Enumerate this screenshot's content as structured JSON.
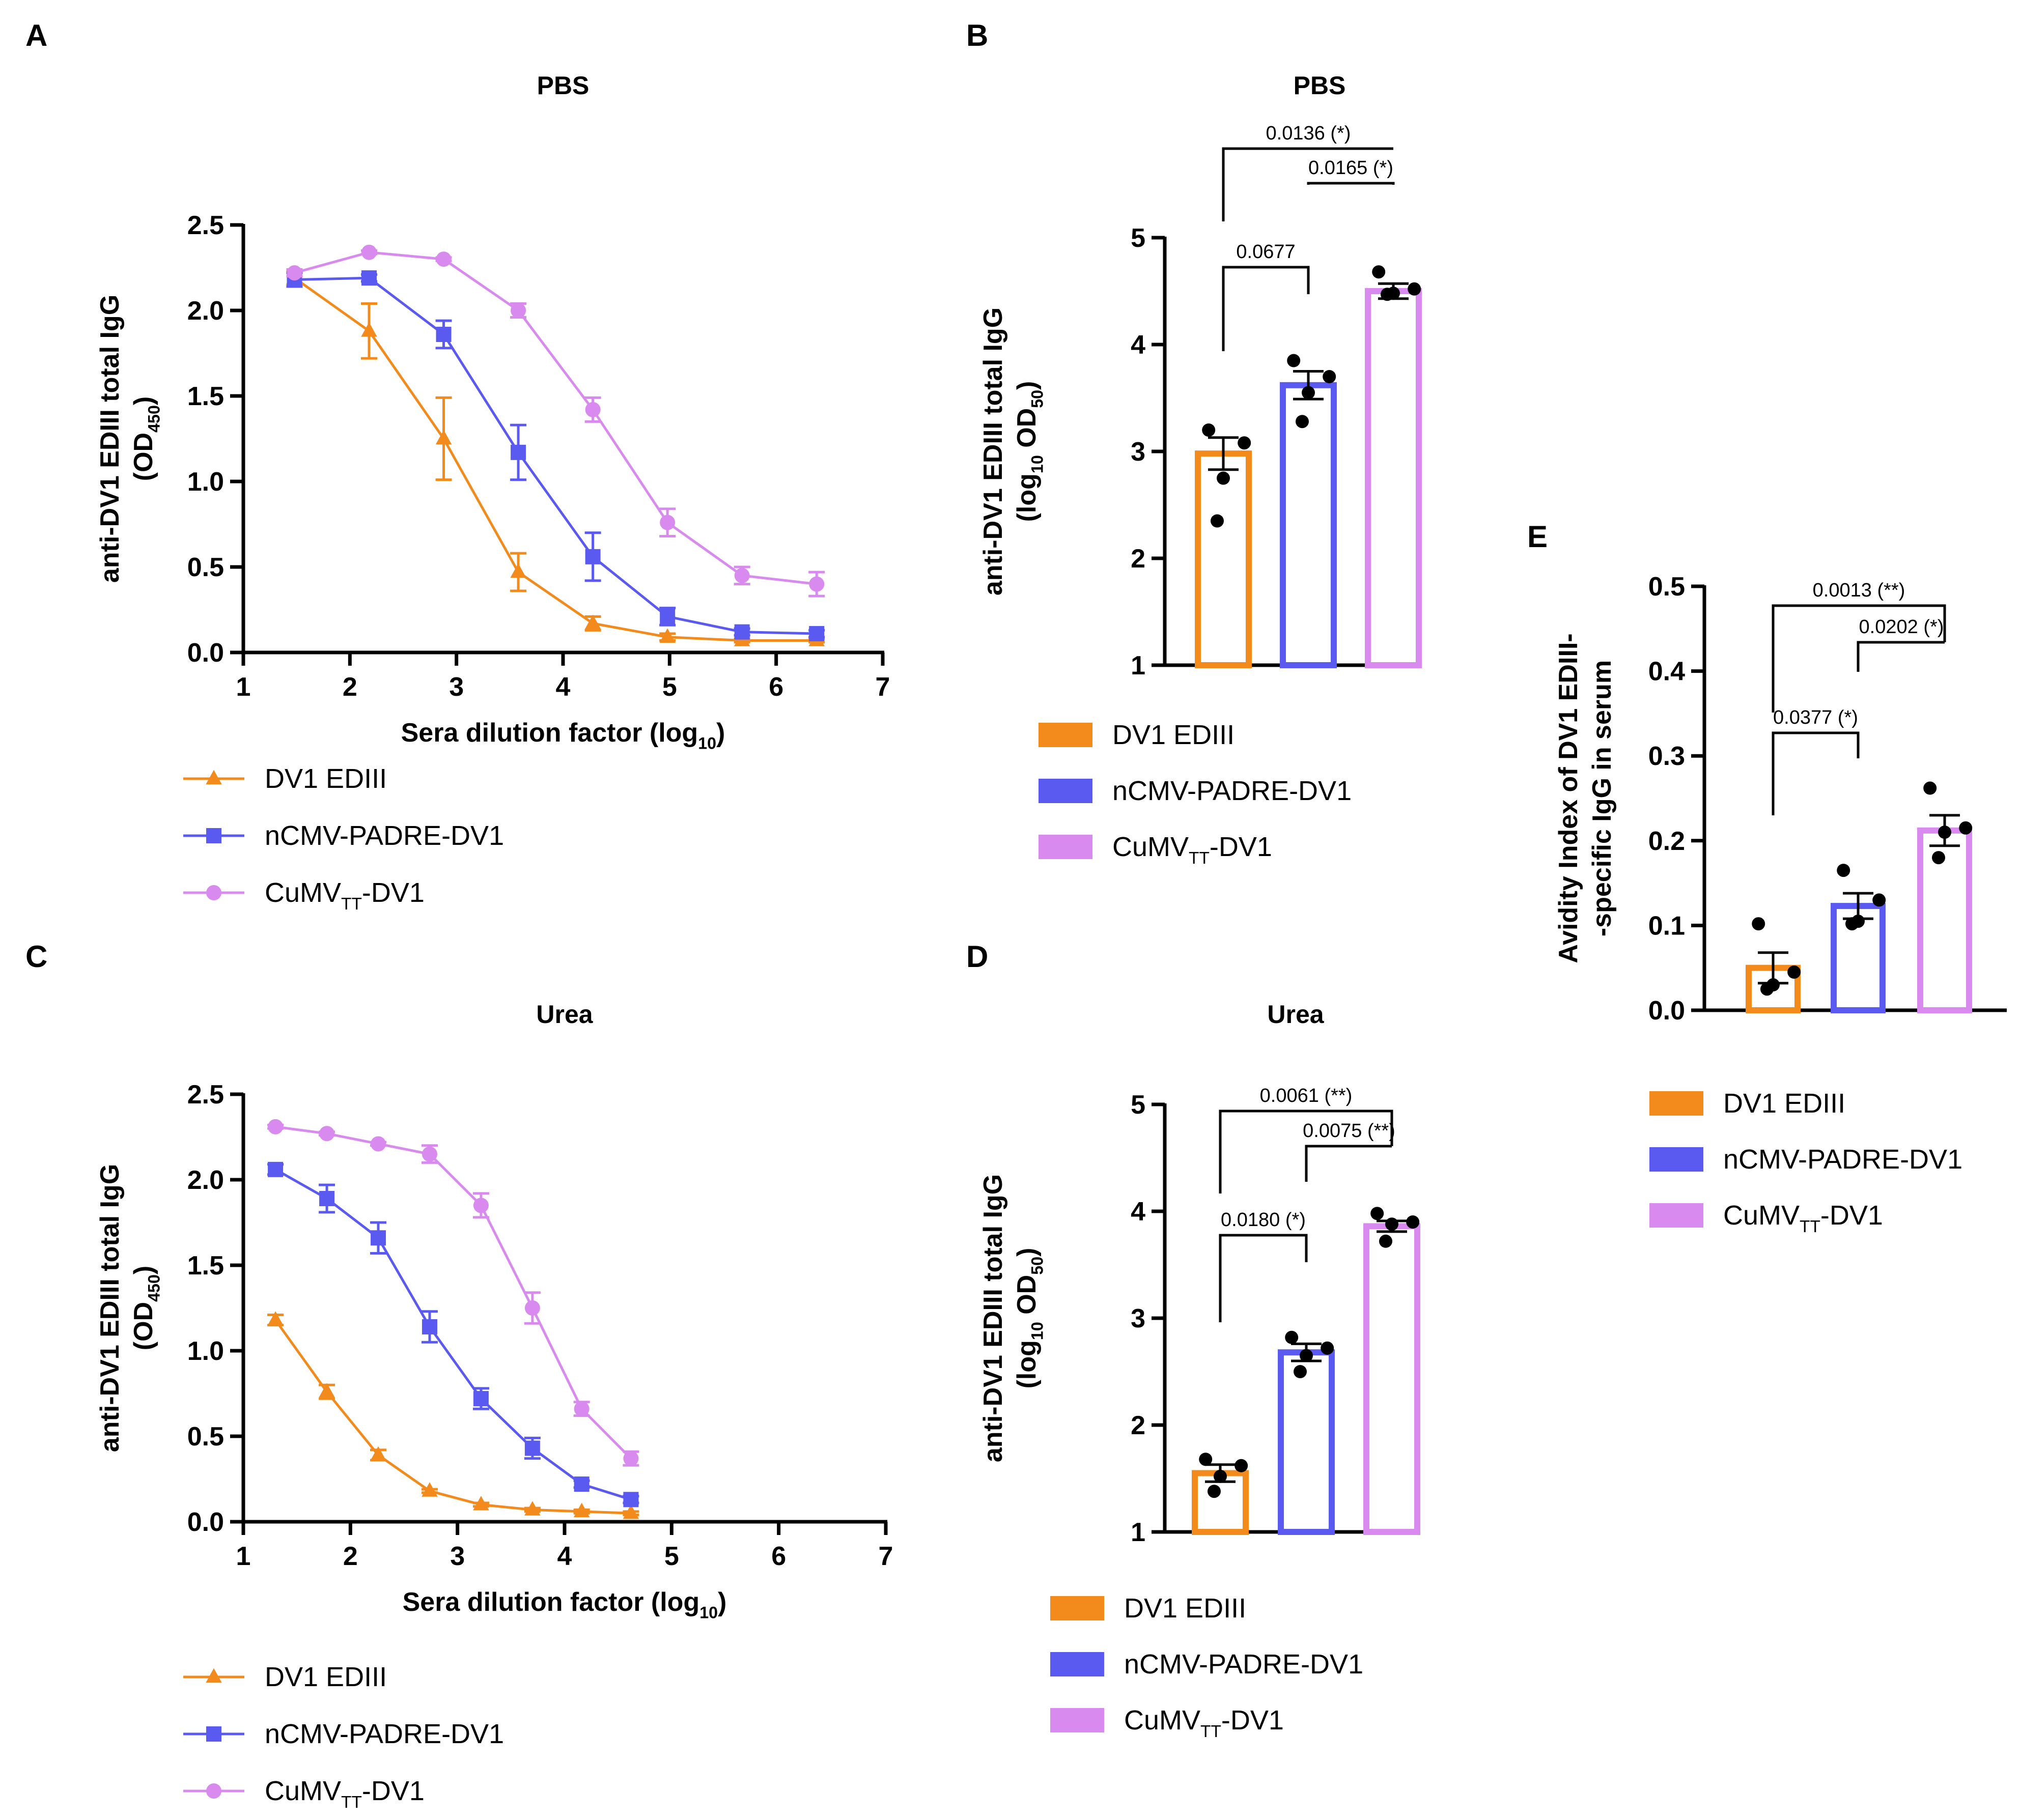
{
  "colors": {
    "orange": "#F28A1C",
    "blue": "#5A5AF0",
    "pink": "#D88AEE",
    "axis": "#000000",
    "dots": "#000000"
  },
  "series_names": [
    "DV1 EDIII",
    "nCMV-PADRE-DV1",
    "CuMV_TT-DV1"
  ],
  "chart_data": [
    {
      "panel": "A",
      "type": "line",
      "title": "PBS",
      "xlabel": "Sera dilution factor (log10)",
      "xlabel_main": "Sera dilution factor (log",
      "xlabel_sub": "10",
      "xlabel_end": ")",
      "ylabel_line1": "anti-DV1 EDIII total IgG",
      "ylabel_line2_main": "(OD",
      "ylabel_line2_sub": "450",
      "ylabel_line2_end": ")",
      "xlim": [
        1,
        7
      ],
      "ylim": [
        0,
        2.5
      ],
      "xticks": [
        "1",
        "2",
        "3",
        "4",
        "5",
        "6",
        "7"
      ],
      "yticks": [
        "0.0",
        "0.5",
        "1.0",
        "1.5",
        "2.0",
        "2.5"
      ],
      "series": [
        {
          "name": "DV1 EDIII",
          "marker": "triangle",
          "x": [
            1.48,
            2.18,
            2.88,
            3.58,
            4.28,
            4.98,
            5.68,
            6.38
          ],
          "y": [
            2.19,
            1.88,
            1.25,
            0.47,
            0.17,
            0.09,
            0.07,
            0.07
          ],
          "err": [
            0.04,
            0.16,
            0.24,
            0.11,
            0.04,
            0.02,
            0.01,
            0.01
          ]
        },
        {
          "name": "nCMV-PADRE-DV1",
          "marker": "square",
          "x": [
            1.48,
            2.18,
            2.88,
            3.58,
            4.28,
            4.98,
            5.68,
            6.38
          ],
          "y": [
            2.18,
            2.19,
            1.86,
            1.17,
            0.56,
            0.21,
            0.12,
            0.11
          ],
          "err": [
            0.04,
            0.02,
            0.08,
            0.16,
            0.14,
            0.05,
            0.02,
            0.02
          ]
        },
        {
          "name": "CuMV_TT-DV1",
          "marker": "circle",
          "x": [
            1.48,
            2.18,
            2.88,
            3.58,
            4.28,
            4.98,
            5.68,
            6.38
          ],
          "y": [
            2.22,
            2.34,
            2.3,
            2.0,
            1.42,
            0.76,
            0.45,
            0.4
          ],
          "err": [
            0.02,
            0.01,
            0.01,
            0.04,
            0.07,
            0.08,
            0.05,
            0.07
          ]
        }
      ],
      "legend": [
        "DV1 EDIII",
        "nCMV-PADRE-DV1",
        "CuMV_TT-DV1"
      ]
    },
    {
      "panel": "B",
      "type": "bar",
      "title": "PBS",
      "ylabel_line1": "anti-DV1 EDIII total IgG",
      "ylabel_line2_main": "(log",
      "ylabel_line2_sub": "10",
      "ylabel_line2_mid": " OD",
      "ylabel_line2_sub2": "50",
      "ylabel_line2_end": ")",
      "ylim": [
        1,
        5
      ],
      "yticks": [
        "1",
        "2",
        "3",
        "4",
        "5"
      ],
      "categories": [
        "DV1 EDIII",
        "nCMV-PADRE-DV1",
        "CuMV_TT-DV1"
      ],
      "values": [
        2.98,
        3.62,
        4.5
      ],
      "sem": [
        0.15,
        0.13,
        0.07
      ],
      "points": [
        [
          3.2,
          3.08,
          2.75,
          2.35
        ],
        [
          3.85,
          3.7,
          3.55,
          3.28
        ],
        [
          4.68,
          4.52,
          4.48,
          4.47
        ]
      ],
      "comparisons": [
        {
          "from": 0,
          "to": 1,
          "label": "0.0677",
          "level": 0
        },
        {
          "from": 1,
          "to": 2,
          "label": "0.0165 (*)",
          "level": 1
        },
        {
          "from": 0,
          "to": 2,
          "label": "0.0136 (*)",
          "level": 2
        }
      ],
      "legend": [
        "DV1 EDIII",
        "nCMV-PADRE-DV1",
        "CuMV_TT-DV1"
      ]
    },
    {
      "panel": "C",
      "type": "line",
      "title": "Urea",
      "xlabel": "Sera dilution factor (log10)",
      "xlabel_main": "Sera dilution factor (log",
      "xlabel_sub": "10",
      "xlabel_end": ")",
      "ylabel_line1": "anti-DV1 EDIII total IgG",
      "ylabel_line2_main": "(OD",
      "ylabel_line2_sub": "450",
      "ylabel_line2_end": ")",
      "xlim": [
        1,
        7
      ],
      "ylim": [
        0,
        2.5
      ],
      "xticks": [
        "1",
        "2",
        "3",
        "4",
        "5",
        "6",
        "7"
      ],
      "yticks": [
        "0.0",
        "0.5",
        "1.0",
        "1.5",
        "2.0",
        "2.5"
      ],
      "series": [
        {
          "name": "DV1 EDIII",
          "marker": "triangle",
          "x": [
            1.3,
            1.78,
            2.26,
            2.74,
            3.22,
            3.7,
            4.16,
            4.62
          ],
          "y": [
            1.18,
            0.76,
            0.39,
            0.18,
            0.1,
            0.07,
            0.06,
            0.05
          ],
          "err": [
            0.03,
            0.04,
            0.03,
            0.01,
            0.01,
            0.01,
            0.01,
            0.01
          ]
        },
        {
          "name": "nCMV-PADRE-DV1",
          "marker": "square",
          "x": [
            1.3,
            1.78,
            2.26,
            2.74,
            3.22,
            3.7,
            4.16,
            4.62
          ],
          "y": [
            2.06,
            1.89,
            1.66,
            1.14,
            0.72,
            0.43,
            0.22,
            0.13
          ],
          "err": [
            0.03,
            0.08,
            0.09,
            0.09,
            0.06,
            0.06,
            0.02,
            0.02
          ]
        },
        {
          "name": "CuMV_TT-DV1",
          "marker": "circle",
          "x": [
            1.3,
            1.78,
            2.26,
            2.74,
            3.22,
            3.7,
            4.16,
            4.62
          ],
          "y": [
            2.31,
            2.27,
            2.21,
            2.15,
            1.85,
            1.25,
            0.66,
            0.37
          ],
          "err": [
            0.01,
            0.01,
            0.01,
            0.05,
            0.07,
            0.09,
            0.04,
            0.04
          ]
        }
      ],
      "legend": [
        "DV1 EDIII",
        "nCMV-PADRE-DV1",
        "CuMV_TT-DV1"
      ]
    },
    {
      "panel": "D",
      "type": "bar",
      "title": "Urea",
      "ylabel_line1": "anti-DV1 EDIII total IgG",
      "ylabel_line2_main": "(log",
      "ylabel_line2_sub": "10",
      "ylabel_line2_mid": " OD",
      "ylabel_line2_sub2": "50",
      "ylabel_line2_end": ")",
      "ylim": [
        1,
        5
      ],
      "yticks": [
        "1",
        "2",
        "3",
        "4",
        "5"
      ],
      "categories": [
        "DV1 EDIII",
        "nCMV-PADRE-DV1",
        "CuMV_TT-DV1"
      ],
      "values": [
        1.55,
        2.68,
        3.86
      ],
      "sem": [
        0.08,
        0.08,
        0.05
      ],
      "points": [
        [
          1.68,
          1.62,
          1.52,
          1.38
        ],
        [
          2.82,
          2.72,
          2.65,
          2.5
        ],
        [
          3.98,
          3.9,
          3.88,
          3.72
        ]
      ],
      "comparisons": [
        {
          "from": 0,
          "to": 1,
          "label": "0.0180 (*)",
          "level": 0
        },
        {
          "from": 1,
          "to": 2,
          "label": "0.0075 (**)",
          "level": 1
        },
        {
          "from": 0,
          "to": 2,
          "label": "0.0061 (**)",
          "level": 2
        }
      ],
      "legend": [
        "DV1 EDIII",
        "nCMV-PADRE-DV1",
        "CuMV_TT-DV1"
      ]
    },
    {
      "panel": "E",
      "type": "bar",
      "title": "",
      "ylabel_line1": "Avidity Index of DV1 EDIII-",
      "ylabel_line2": "-specific IgG in serum",
      "ylim": [
        0,
        0.5
      ],
      "yticks": [
        "0.0",
        "0.1",
        "0.2",
        "0.3",
        "0.4",
        "0.5"
      ],
      "categories": [
        "DV1 EDIII",
        "nCMV-PADRE-DV1",
        "CuMV_TT-DV1"
      ],
      "values": [
        0.05,
        0.123,
        0.212
      ],
      "sem": [
        0.018,
        0.015,
        0.018
      ],
      "points": [
        [
          0.102,
          0.045,
          0.03,
          0.025
        ],
        [
          0.165,
          0.13,
          0.105,
          0.102
        ],
        [
          0.262,
          0.215,
          0.21,
          0.18
        ]
      ],
      "comparisons": [
        {
          "from": 0,
          "to": 1,
          "label": "0.0377 (*)",
          "level": 0
        },
        {
          "from": 1,
          "to": 2,
          "label": "0.0202 (*)",
          "level": 1
        },
        {
          "from": 0,
          "to": 2,
          "label": "0.0013 (**)",
          "level": 2
        }
      ],
      "legend": [
        "DV1 EDIII",
        "nCMV-PADRE-DV1",
        "CuMV_TT-DV1"
      ]
    }
  ],
  "legend_text": {
    "dv1": "DV1 EDIII",
    "ncmv": "nCMV-PADRE-DV1",
    "cumv_main": "CuMV",
    "cumv_sub": "TT",
    "cumv_end": "-DV1"
  },
  "panel_letters": [
    "A",
    "B",
    "C",
    "D",
    "E"
  ]
}
